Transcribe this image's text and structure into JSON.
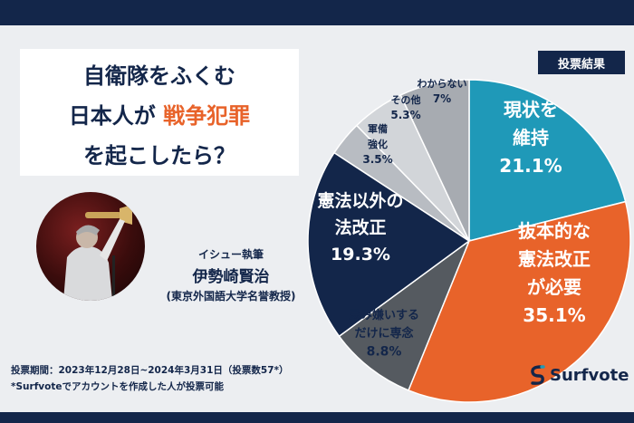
{
  "title": {
    "line1": "自衛隊をふくむ",
    "line2_pre": "日本人が",
    "line2_highlight": "戦争犯罪",
    "line3": "を起こしたら？"
  },
  "author": {
    "role": "イシュー執筆",
    "name": "伊勢崎賢治",
    "affiliation": "(東京外国語大学名誉教授)"
  },
  "footer": {
    "period": "投票期間：2023年12月28日~2024年3月31日（投票数57*）",
    "note": "*Surfvoteでアカウントを作成した人が投票可能"
  },
  "badge": "投票結果",
  "logo": {
    "text": "Surfvote"
  },
  "colors": {
    "navy": "#13264a",
    "accent": "#e8632a",
    "teal": "#1f99b8",
    "darkgray": "#555a60",
    "lightgray1": "#b8bcc2",
    "lightgray2": "#d2d5d9",
    "lightgray3": "#a7abb1"
  },
  "chart_data": {
    "type": "pie",
    "title": "",
    "slices": [
      {
        "lines": [
          "現状を",
          "維持"
        ],
        "pct_label": "21.1%",
        "value": 21.1,
        "color": "#1f99b8",
        "text_color": "#ffffff"
      },
      {
        "lines": [
          "抜本的な",
          "憲法改正",
          "が必要"
        ],
        "pct_label": "35.1%",
        "value": 35.1,
        "color": "#e8632a",
        "text_color": "#ffffff"
      },
      {
        "lines": [
          "忌み嫌いする",
          "だけに専念"
        ],
        "pct_label": "8.8%",
        "value": 8.8,
        "color": "#555a60",
        "text_color": "#13264a"
      },
      {
        "lines": [
          "憲法以外の",
          "法改正"
        ],
        "pct_label": "19.3%",
        "value": 19.3,
        "color": "#13264a",
        "text_color": "#ffffff"
      },
      {
        "lines": [
          "軍備",
          "強化"
        ],
        "pct_label": "3.5%",
        "value": 3.5,
        "color": "#b8bcc2",
        "text_color": "#13264a"
      },
      {
        "lines": [
          "その他"
        ],
        "pct_label": "5.3%",
        "value": 5.3,
        "color": "#d2d5d9",
        "text_color": "#13264a"
      },
      {
        "lines": [
          "わからない"
        ],
        "pct_label": "7%",
        "value": 7.0,
        "color": "#a7abb1",
        "text_color": "#13264a"
      }
    ]
  }
}
